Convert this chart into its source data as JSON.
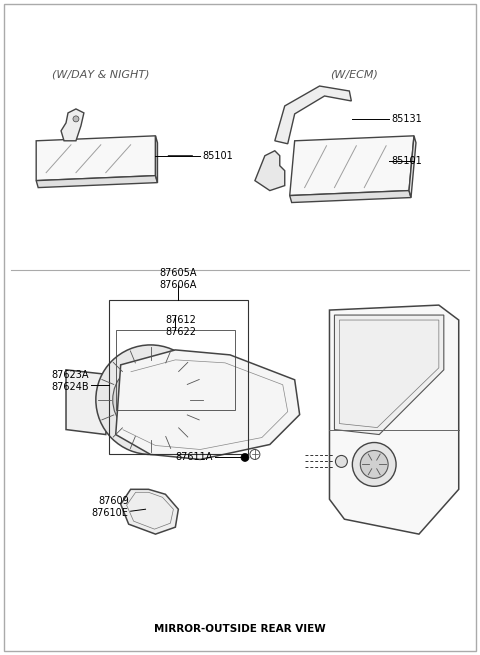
{
  "title": "MIRROR-OUTSIDE REAR VIEW",
  "background_color": "#ffffff",
  "border_color": "#000000",
  "text_color": "#000000",
  "label_fontsize": 7.0,
  "title_fontsize": 7.5,
  "fig_width": 4.8,
  "fig_height": 6.55,
  "top_left_label": "(W/DAY & NIGHT)",
  "top_right_label": "(W/ECM)",
  "part_85101_left": "85101",
  "part_85131": "85131",
  "part_85101_right": "85101",
  "parts_bottom": [
    "87605A",
    "87606A",
    "87612",
    "87622",
    "87623A",
    "87624B",
    "87611A",
    "87609",
    "87610E"
  ]
}
